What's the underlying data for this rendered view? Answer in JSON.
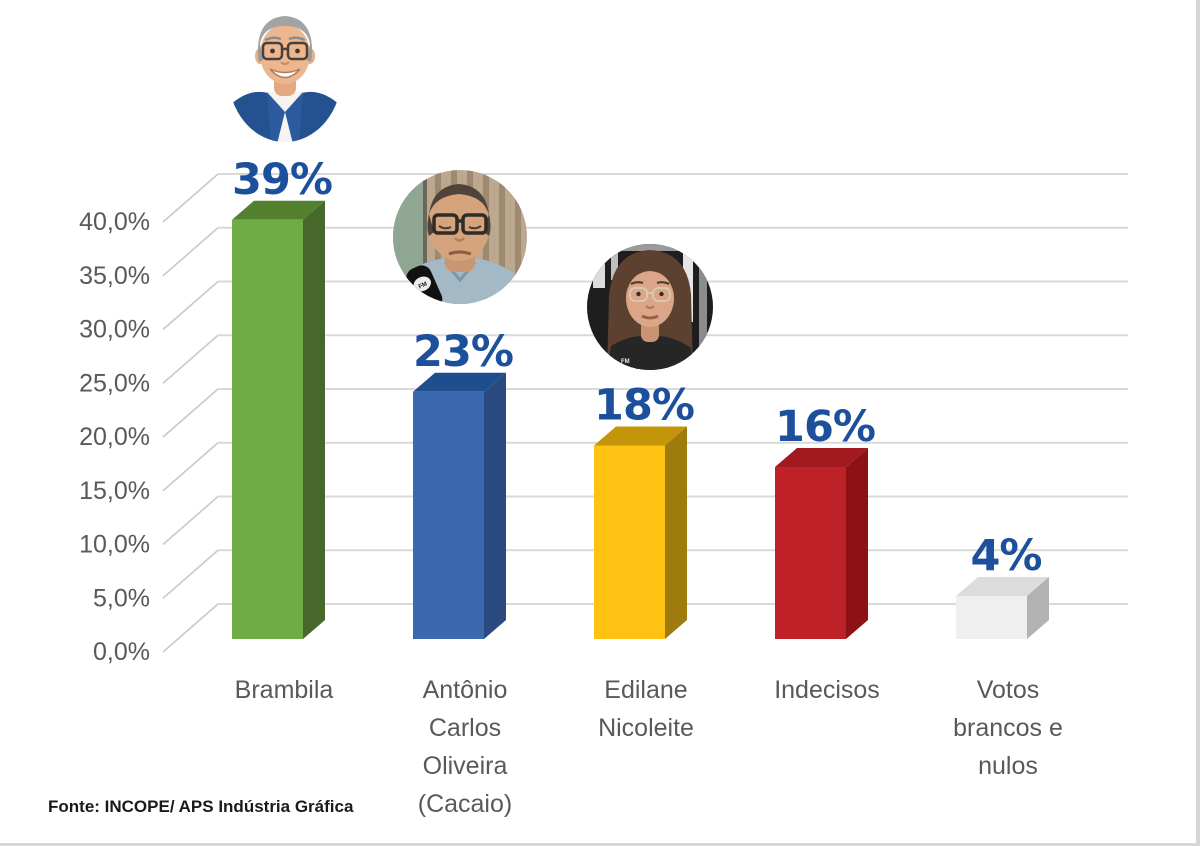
{
  "chart_data": {
    "type": "bar",
    "style": "3d-column",
    "title": "",
    "xlabel": "",
    "ylabel": "",
    "categories": [
      "Brambila",
      "Antônio Carlos Oliveira (Cacaio)",
      "Edilane Nicoleite",
      "Indecisos",
      "Votos brancos e nulos"
    ],
    "category_lines": [
      [
        "Brambila"
      ],
      [
        "Antônio",
        "Carlos",
        "Oliveira",
        "(Cacaio)"
      ],
      [
        "Edilane",
        "Nicoleite"
      ],
      [
        "Indecisos"
      ],
      [
        "Votos",
        "brancos e",
        "nulos"
      ]
    ],
    "values": [
      39,
      23,
      18,
      16,
      4
    ],
    "value_labels": [
      "39%",
      "23%",
      "18%",
      "16%",
      "4%"
    ],
    "ylim": [
      0,
      40
    ],
    "ytick_step": 5,
    "ytick_labels": [
      "0,0%",
      "5,0%",
      "10,0%",
      "15,0%",
      "20,0%",
      "25,0%",
      "30,0%",
      "35,0%",
      "40,0%"
    ],
    "grid": true,
    "legend_position": "none",
    "bar_colors": [
      {
        "front": "#6FAC46",
        "top": "#538130",
        "side": "#47682B"
      },
      {
        "front": "#3B69B0",
        "top": "#1F4E8F",
        "side": "#2A4A80"
      },
      {
        "front": "#FFC112",
        "top": "#C39609",
        "side": "#9F7B0D"
      },
      {
        "front": "#BE2126",
        "top": "#A21A1F",
        "side": "#8C1216"
      },
      {
        "front": "#EFEFEF",
        "top": "#DCDCDC",
        "side": "#B2B2B2"
      }
    ],
    "value_label_color": "#1C4F9C",
    "axis_label_color": "#595959",
    "gridline_color": "#D9D9D9",
    "tick_diagonal_color": "#C9C9C9"
  },
  "photos": [
    {
      "name": "brambila-photo",
      "candidate": "Brambila"
    },
    {
      "name": "cacaio-photo",
      "candidate": "Antônio Carlos Oliveira (Cacaio)"
    },
    {
      "name": "edilane-photo",
      "candidate": "Edilane Nicoleite"
    }
  ],
  "footer": {
    "source": "Fonte: INCOPE/ APS Indústria Gráfica"
  }
}
